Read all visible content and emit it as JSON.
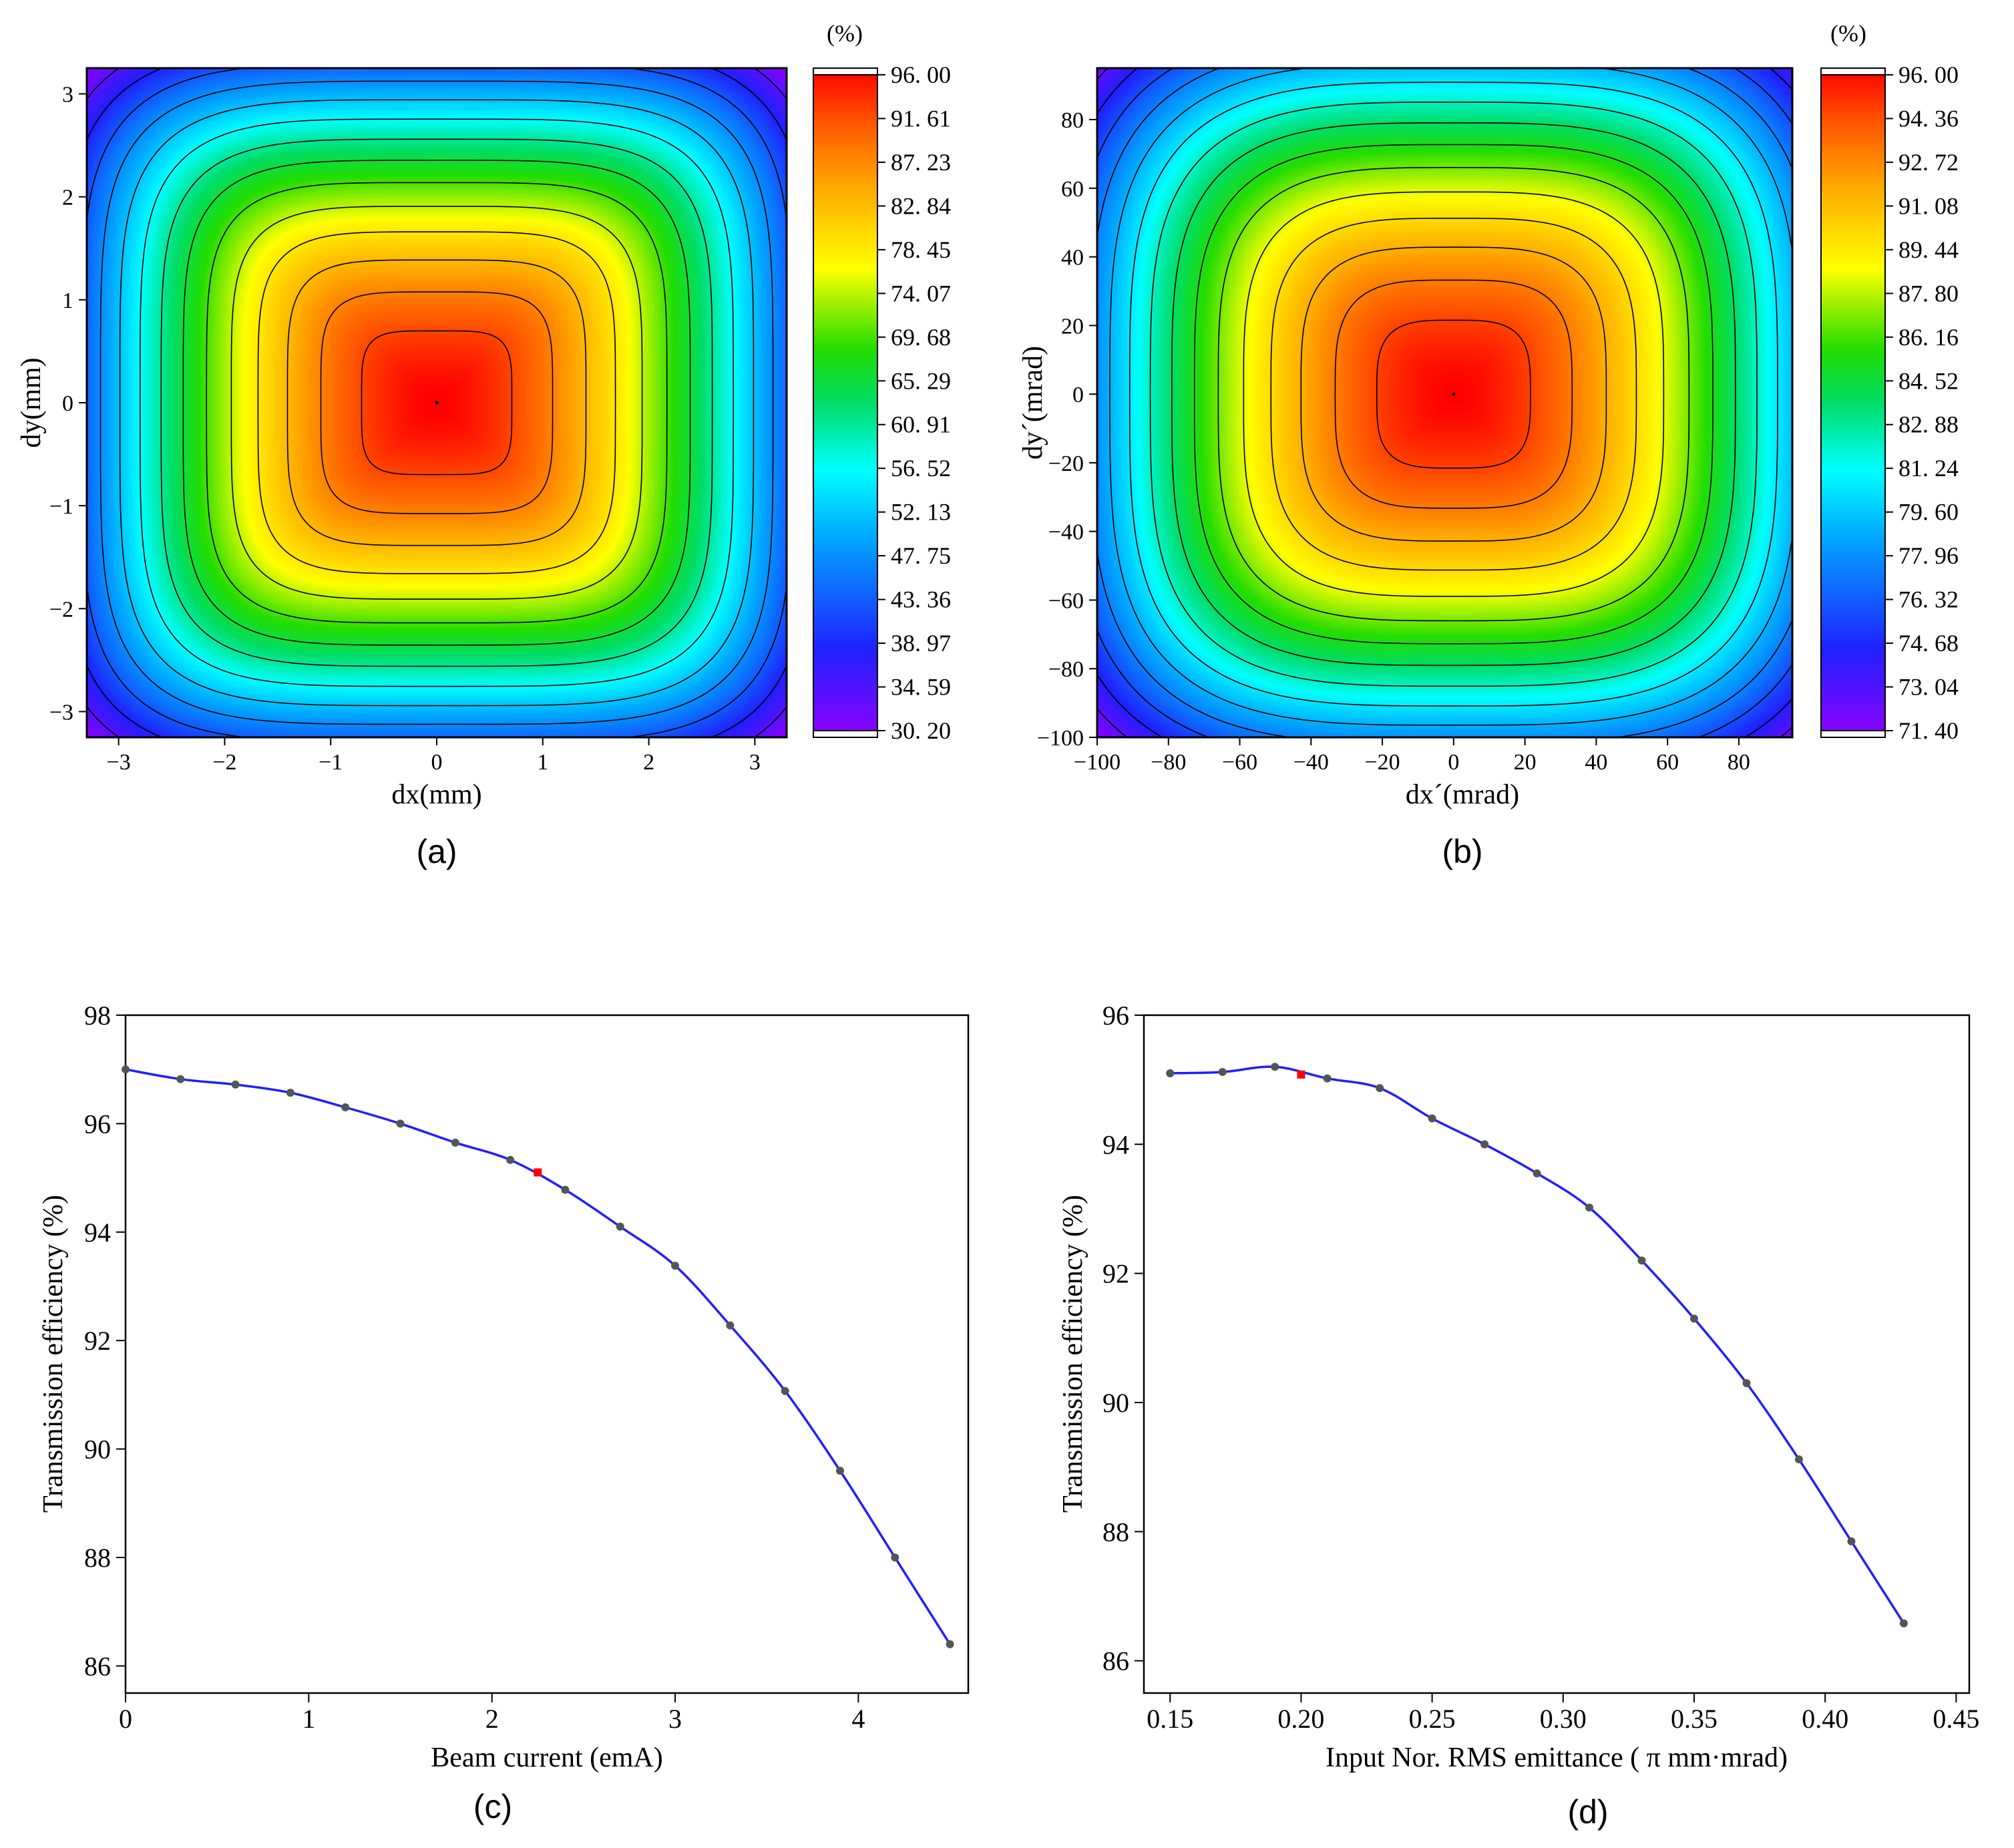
{
  "chart_data": [
    {
      "panel": "(a)",
      "type": "heatmap",
      "xlabel": "dx(mm)",
      "ylabel": "dy(mm)",
      "xlim": [
        -3.3,
        3.3
      ],
      "ylim": [
        -3.25,
        3.25
      ],
      "xticks": [
        -3,
        -2,
        -1,
        0,
        1,
        2,
        3
      ],
      "xtick_labels": [
        "−3",
        "−2",
        "−1",
        "0",
        "1",
        "2",
        "3"
      ],
      "yticks": [
        -3,
        -2,
        -1,
        0,
        1,
        2,
        3
      ],
      "ytick_labels": [
        "−3",
        "−2",
        "−1",
        "0",
        "1",
        "2",
        "3"
      ],
      "colorbar": {
        "unit_label": "(%)",
        "min": 30.2,
        "max": 96.0,
        "tick_labels": [
          "96. 00",
          "91. 61",
          "87. 23",
          "82. 84",
          "78. 45",
          "74. 07",
          "69. 68",
          "65. 29",
          "60. 91",
          "56. 52",
          "52. 13",
          "47. 75",
          "43. 36",
          "38. 97",
          "34. 59",
          "30. 20"
        ]
      },
      "center_value": 96.0,
      "corner_value": 30.2,
      "contour_levels": 14,
      "shape_exponent": 4.5
    },
    {
      "panel": "(b)",
      "type": "heatmap",
      "xlabel": "dx´(mrad)",
      "ylabel": "dy´(mrad)",
      "xlim": [
        -100,
        95
      ],
      "ylim": [
        -100,
        95
      ],
      "xticks": [
        -100,
        -80,
        -60,
        -40,
        -20,
        0,
        20,
        40,
        60,
        80
      ],
      "xtick_labels": [
        "−100",
        "−80",
        "−60",
        "−40",
        "−20",
        "0",
        "20",
        "40",
        "60",
        "80"
      ],
      "yticks": [
        -100,
        -80,
        -60,
        -40,
        -20,
        0,
        20,
        40,
        60,
        80
      ],
      "ytick_labels": [
        "−100",
        "−80",
        "−60",
        "−40",
        "−20",
        "0",
        "20",
        "40",
        "60",
        "80"
      ],
      "colorbar": {
        "unit_label": "(%)",
        "min": 71.4,
        "max": 96.0,
        "tick_labels": [
          "96. 00",
          "94. 36",
          "92. 72",
          "91. 08",
          "89. 44",
          "87. 80",
          "86. 16",
          "84. 52",
          "82. 88",
          "81. 24",
          "79. 60",
          "77. 96",
          "76. 32",
          "74. 68",
          "73. 04",
          "71. 40"
        ]
      },
      "center_value": 96.0,
      "corner_value": 71.4,
      "contour_levels": 15,
      "shape_exponent": 3.5
    },
    {
      "panel": "(c)",
      "type": "line",
      "xlabel": "Beam current (emA)",
      "ylabel": "Transmission efficiency (%)",
      "xlim": [
        0,
        4.6
      ],
      "ylim": [
        85.5,
        98
      ],
      "xticks": [
        0,
        1,
        2,
        3,
        4
      ],
      "xtick_labels": [
        "0",
        "1",
        "2",
        "3",
        "4"
      ],
      "yticks": [
        86,
        88,
        90,
        92,
        94,
        96,
        98
      ],
      "ytick_labels": [
        "86",
        "88",
        "90",
        "92",
        "94",
        "96",
        "98"
      ],
      "series": [
        {
          "name": "Transmission efficiency",
          "color": "#1f1fff",
          "x": [
            0,
            0.3,
            0.6,
            0.9,
            1.2,
            1.5,
            1.8,
            2.1,
            2.4,
            2.7,
            3.0,
            3.3,
            3.6,
            3.9,
            4.2,
            4.5
          ],
          "y": [
            97.0,
            96.82,
            96.72,
            96.57,
            96.3,
            96.0,
            95.65,
            95.33,
            94.78,
            94.1,
            93.38,
            92.28,
            91.07,
            89.6,
            88.0,
            86.4
          ]
        }
      ],
      "highlight": {
        "x": 2.25,
        "y": 95.1,
        "color": "#ff0000"
      }
    },
    {
      "panel": "(d)",
      "type": "line",
      "xlabel": "Input Nor. RMS emittance ( π mm·mrad)",
      "ylabel": "Transmission efficiency (%)",
      "xlim": [
        0.14,
        0.455
      ],
      "ylim": [
        85.5,
        96
      ],
      "xticks": [
        0.15,
        0.2,
        0.25,
        0.3,
        0.35,
        0.4,
        0.45
      ],
      "xtick_labels": [
        "0.15",
        "0.20",
        "0.25",
        "0.30",
        "0.35",
        "0.40",
        "0.45"
      ],
      "yticks": [
        86,
        88,
        90,
        92,
        94,
        96
      ],
      "ytick_labels": [
        "86",
        "88",
        "90",
        "92",
        "94",
        "96"
      ],
      "series": [
        {
          "name": "Transmission efficiency",
          "color": "#1f1fff",
          "x": [
            0.15,
            0.17,
            0.19,
            0.21,
            0.23,
            0.25,
            0.27,
            0.29,
            0.31,
            0.33,
            0.35,
            0.37,
            0.39,
            0.41,
            0.43
          ],
          "y": [
            95.1,
            95.12,
            95.2,
            95.02,
            94.87,
            94.4,
            94.0,
            93.55,
            93.02,
            92.2,
            91.3,
            90.3,
            89.12,
            87.85,
            86.58
          ]
        }
      ],
      "highlight": {
        "x": 0.2,
        "y": 95.08,
        "color": "#ff0000"
      }
    }
  ]
}
